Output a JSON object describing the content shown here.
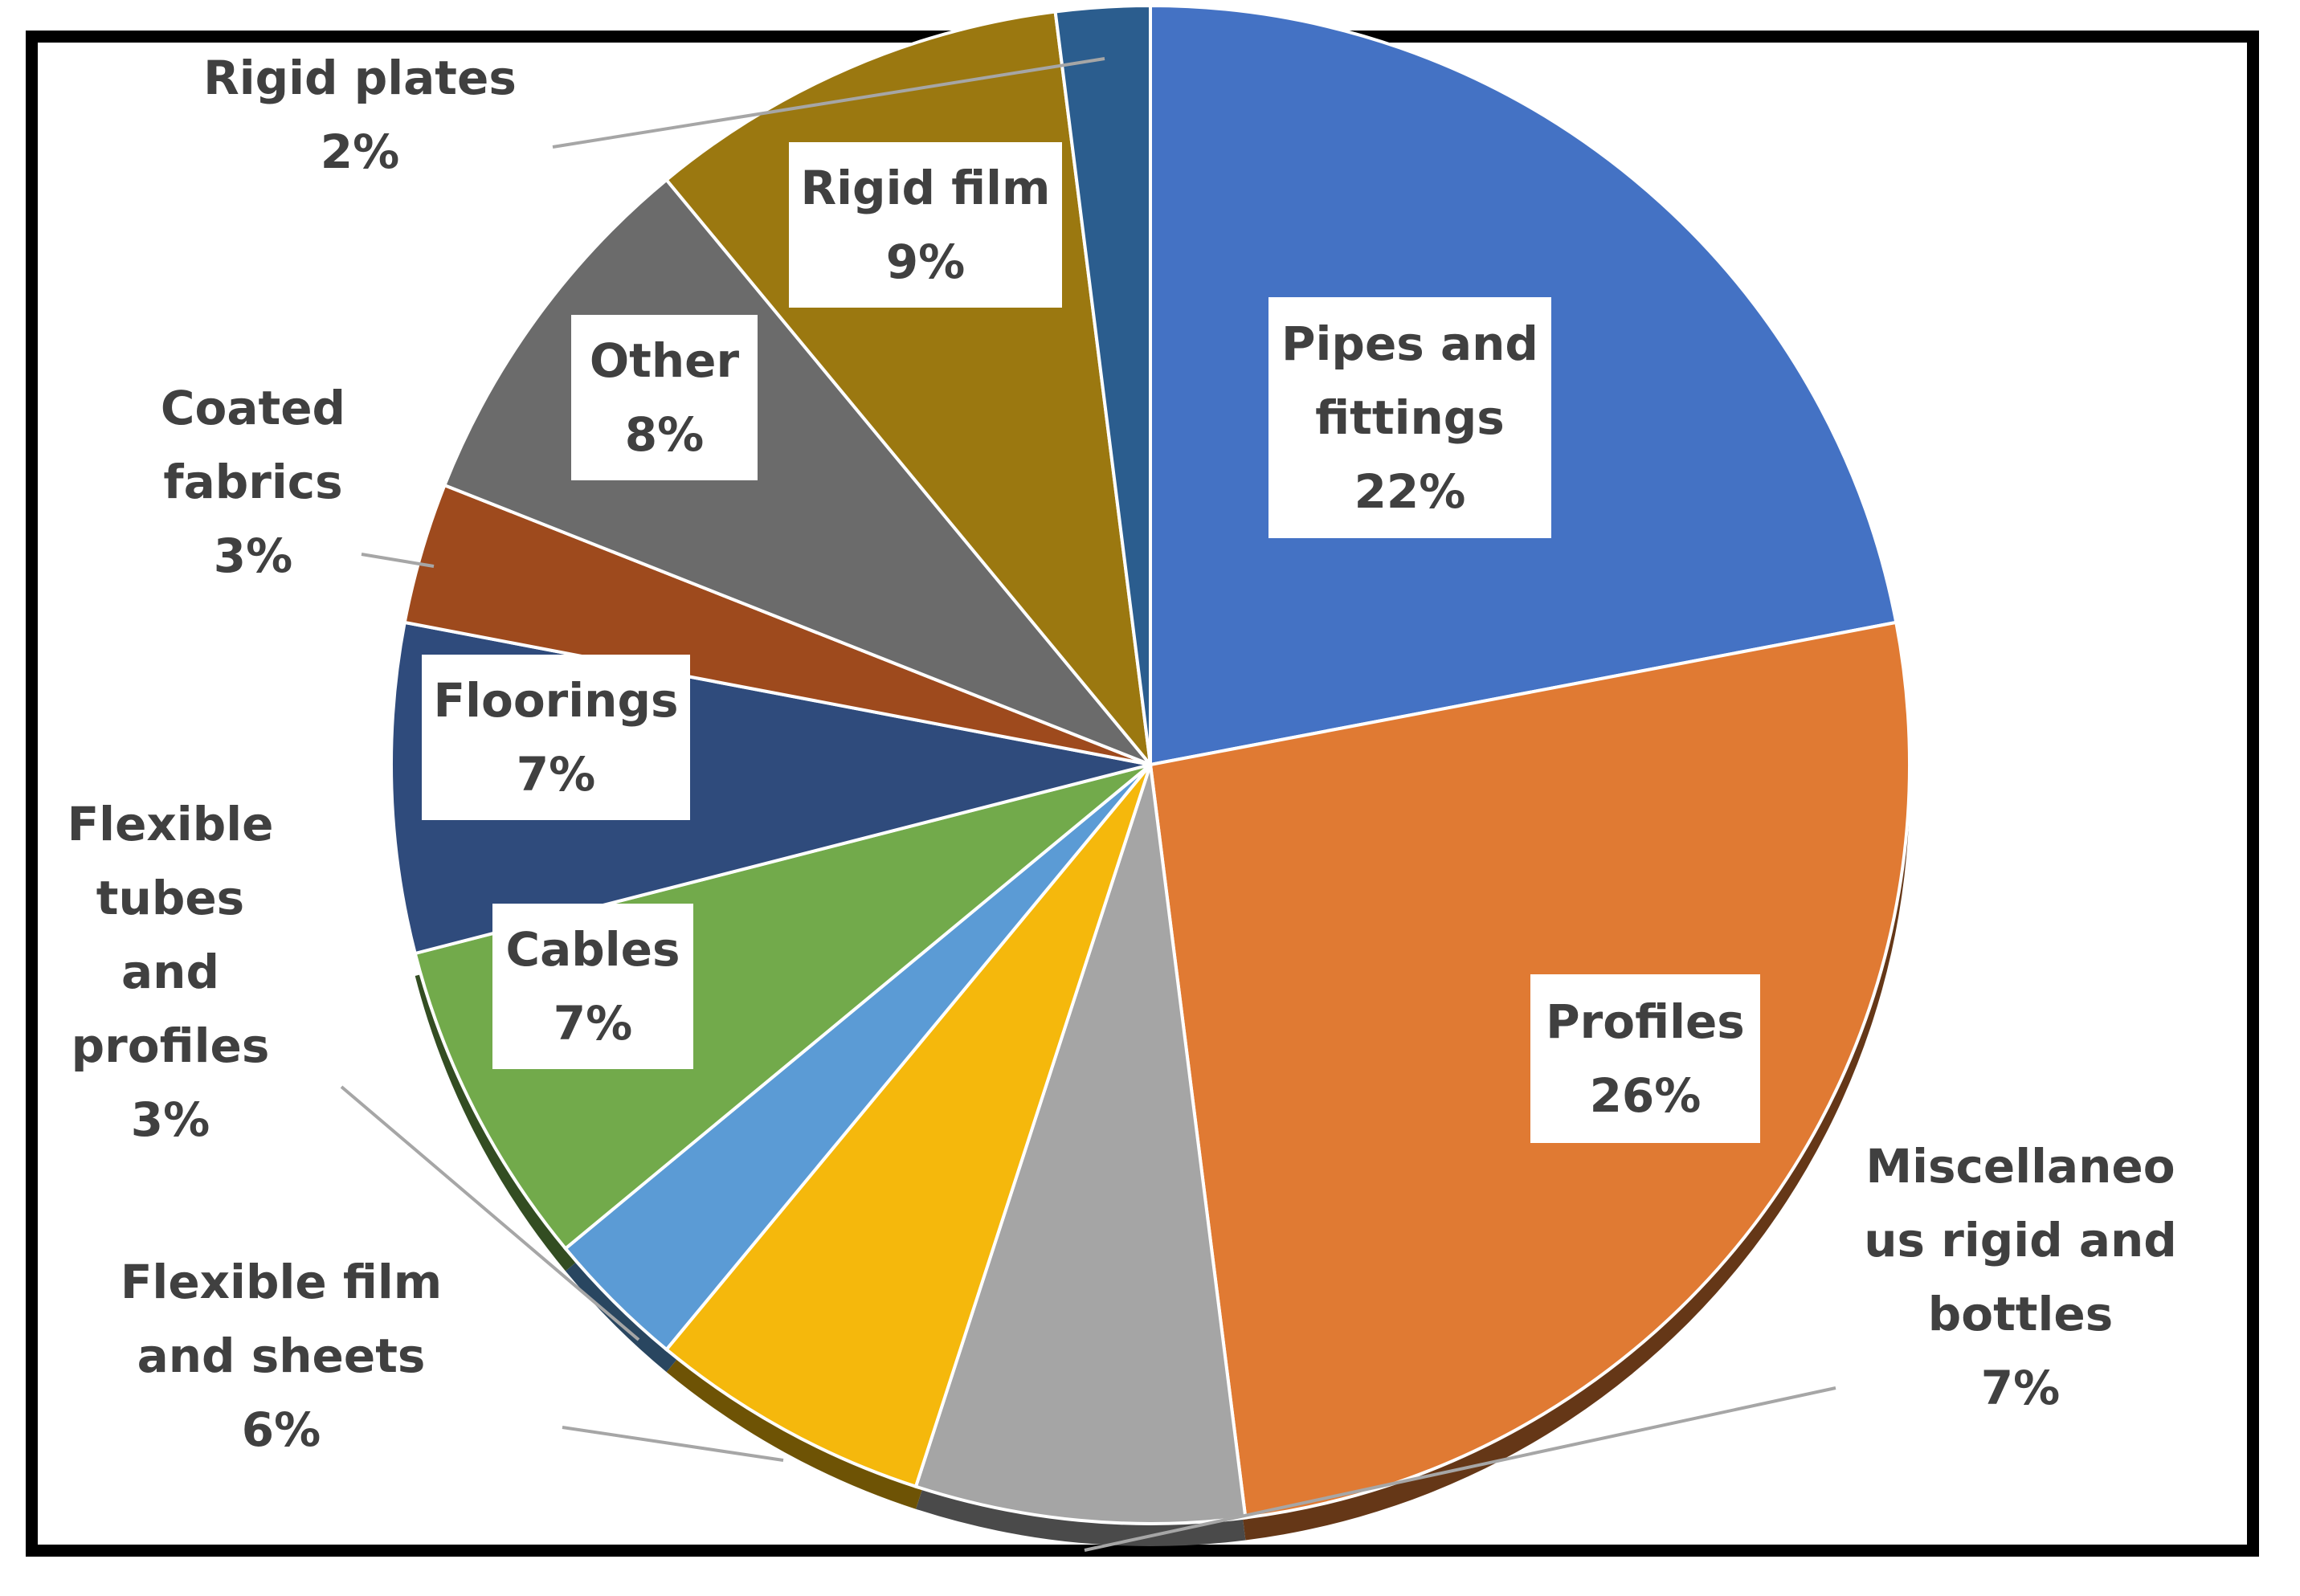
{
  "chart_data": {
    "type": "pie",
    "start_angle_deg": 0,
    "direction": "clockwise",
    "legend": "none",
    "slices": [
      {
        "name": "Pipes and fittings",
        "value": 22,
        "label": [
          "Pipes and",
          "fittings",
          "22%"
        ],
        "color": "#4472C4"
      },
      {
        "name": "Profiles",
        "value": 26,
        "label": [
          "Profiles",
          "26%"
        ],
        "color": "#E07A33"
      },
      {
        "name": "Miscellaneous rigid and bottles",
        "value": 7,
        "label": [
          "Miscellaneo",
          "us rigid and",
          "bottles",
          "7%"
        ],
        "color": "#A5A5A5"
      },
      {
        "name": "Flexible film and sheets",
        "value": 6,
        "label": [
          "Flexible film",
          "and sheets",
          "6%"
        ],
        "color": "#F5B80C"
      },
      {
        "name": "Flexible tubes and profiles",
        "value": 3,
        "label": [
          "Flexible",
          "tubes",
          "and",
          "profiles",
          "3%"
        ],
        "color": "#5B9BD5"
      },
      {
        "name": "Cables",
        "value": 7,
        "label": [
          "Cables",
          "7%"
        ],
        "color": "#72AA4B"
      },
      {
        "name": "Floorings",
        "value": 7,
        "label": [
          "Floorings",
          "7%"
        ],
        "color": "#2F4B7C"
      },
      {
        "name": "Coated fabrics",
        "value": 3,
        "label": [
          "Coated",
          "fabrics",
          "3%"
        ],
        "color": "#9E4A1D"
      },
      {
        "name": "Other",
        "value": 8,
        "label": [
          "Other",
          "8%"
        ],
        "color": "#6B6B6B"
      },
      {
        "name": "Rigid film",
        "value": 9,
        "label": [
          "Rigid film",
          "9%"
        ],
        "color": "#9B7810"
      },
      {
        "name": "Rigid plates",
        "value": 2,
        "label": [
          "Rigid plates",
          "2%"
        ],
        "color": "#2B5D8E"
      }
    ]
  }
}
